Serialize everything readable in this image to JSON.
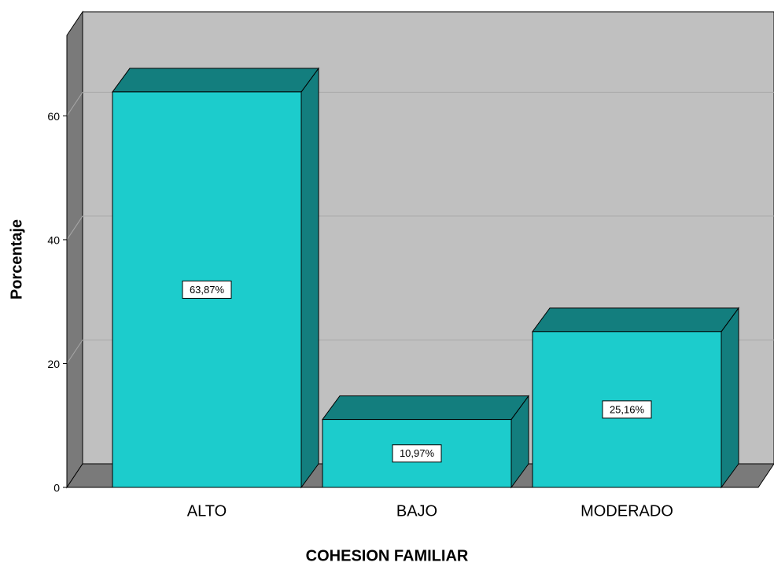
{
  "chart_data": {
    "type": "bar3d",
    "x_label": "COHESION FAMILIAR",
    "y_label": "Porcentaje",
    "categories": [
      "ALTO",
      "BAJO",
      "MODERADO"
    ],
    "values": [
      63.87,
      10.97,
      25.16
    ],
    "value_labels": [
      "63,87%",
      "10,97%",
      "25,16%"
    ],
    "color": "#1ccccc",
    "ylim": [
      0,
      73
    ],
    "yticks": [
      0,
      20,
      40,
      60
    ],
    "grid": true
  }
}
